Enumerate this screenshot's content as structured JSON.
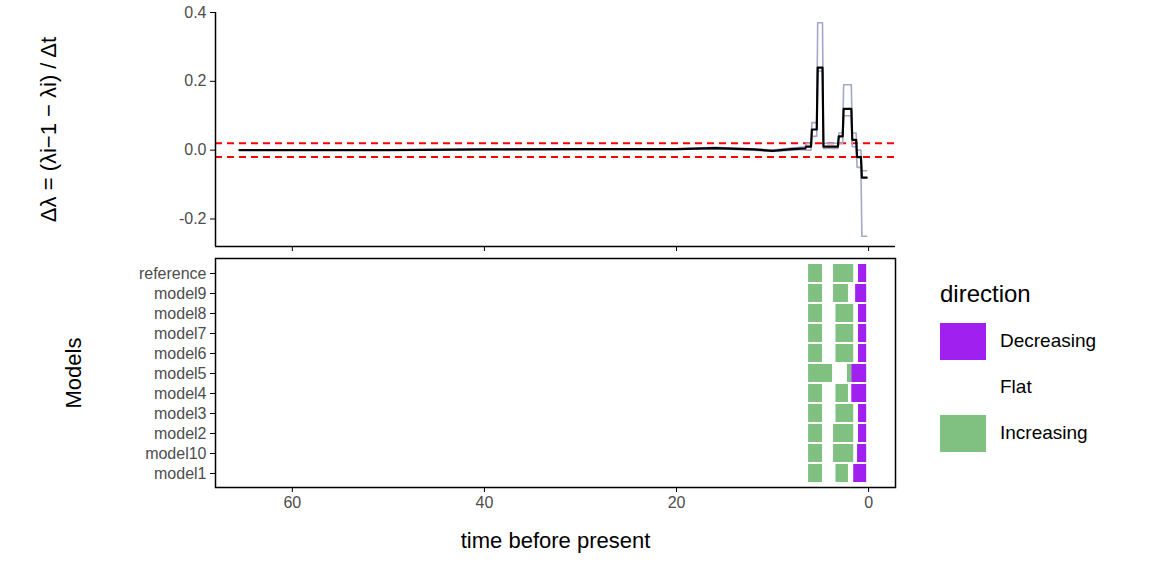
{
  "chart_data": [
    {
      "type": "line",
      "ylabel": "Δλ = (λi−1 − λi) / Δt",
      "x": [
        65.5,
        50,
        40,
        30,
        20,
        16,
        12,
        10,
        8,
        6.6,
        6.5,
        6.0,
        5.9,
        5.4,
        5.3,
        4.8,
        4.7,
        3.2,
        3.1,
        2.7,
        2.6,
        1.8,
        1.7,
        1.3,
        1.2,
        0.8,
        0.7,
        0.2
      ],
      "series": [
        {
          "color": "#a3a8c8",
          "values": [
            0,
            0,
            0.003,
            0.004,
            0.004,
            0.008,
            0.004,
            0.0,
            0.006,
            0.01,
            0.02,
            0.02,
            0.08,
            0.08,
            0.37,
            0.37,
            0.02,
            0.02,
            0.05,
            0.05,
            0.19,
            0.19,
            0.05,
            0.05,
            0.0,
            0.0,
            -0.06,
            -0.06
          ]
        },
        {
          "color": "#a3a8c8",
          "values": [
            0,
            0,
            0.001,
            0.002,
            0.002,
            0.004,
            0.0,
            -0.004,
            0.0,
            0.002,
            0.0,
            0.0,
            0.04,
            0.04,
            0.23,
            0.23,
            0.005,
            0.005,
            0.02,
            0.02,
            0.1,
            0.1,
            0.01,
            0.01,
            -0.05,
            -0.05,
            -0.25,
            -0.25
          ]
        },
        {
          "color": "#000000",
          "values": [
            0,
            0,
            0.002,
            0.003,
            0.003,
            0.006,
            0.002,
            -0.002,
            0.003,
            0.005,
            0.01,
            0.01,
            0.06,
            0.06,
            0.24,
            0.24,
            0.01,
            0.01,
            0.04,
            0.04,
            0.12,
            0.12,
            0.03,
            0.03,
            -0.02,
            -0.02,
            -0.08,
            -0.08
          ]
        }
      ],
      "reference_lines": [
        {
          "value": 0.02,
          "color": "#ff0000",
          "line_style": "dashed"
        },
        {
          "value": -0.02,
          "color": "#ff0000",
          "line_style": "dashed"
        }
      ],
      "xlim": [
        68,
        -2.8
      ],
      "xticks": [
        60,
        40,
        20,
        0
      ],
      "ylim": [
        -0.28,
        0.4
      ],
      "yticks": [
        -0.2,
        {
          "value": 0,
          "label": "0.0"
        },
        0.2,
        0.4
      ],
      "tick_labels": "y"
    },
    {
      "type": "tile",
      "xlabel": "time before present",
      "ylabel": "Models",
      "categories": [
        "reference",
        "model9",
        "model8",
        "model7",
        "model6",
        "model5",
        "model4",
        "model3",
        "model2",
        "model10",
        "model1"
      ],
      "rows": [
        {
          "name": "reference",
          "segments": [
            {
              "start": 6.25,
              "end": 4.8,
              "direction": "Increasing"
            },
            {
              "start": 3.65,
              "end": 1.55,
              "direction": "Increasing"
            },
            {
              "start": 1.05,
              "end": 0.2,
              "direction": "Decreasing"
            }
          ]
        },
        {
          "name": "model9",
          "segments": [
            {
              "start": 6.25,
              "end": 4.8,
              "direction": "Increasing"
            },
            {
              "start": 3.65,
              "end": 2.1,
              "direction": "Increasing"
            },
            {
              "start": 1.35,
              "end": 0.2,
              "direction": "Decreasing"
            }
          ]
        },
        {
          "name": "model8",
          "segments": [
            {
              "start": 6.25,
              "end": 4.8,
              "direction": "Increasing"
            },
            {
              "start": 3.4,
              "end": 1.55,
              "direction": "Increasing"
            },
            {
              "start": 1.05,
              "end": 0.2,
              "direction": "Decreasing"
            }
          ]
        },
        {
          "name": "model7",
          "segments": [
            {
              "start": 6.25,
              "end": 4.8,
              "direction": "Increasing"
            },
            {
              "start": 3.4,
              "end": 1.55,
              "direction": "Increasing"
            },
            {
              "start": 1.05,
              "end": 0.2,
              "direction": "Decreasing"
            }
          ]
        },
        {
          "name": "model6",
          "segments": [
            {
              "start": 6.25,
              "end": 4.8,
              "direction": "Increasing"
            },
            {
              "start": 3.4,
              "end": 1.55,
              "direction": "Increasing"
            },
            {
              "start": 1.05,
              "end": 0.2,
              "direction": "Decreasing"
            }
          ]
        },
        {
          "name": "model5",
          "segments": [
            {
              "start": 6.25,
              "end": 3.75,
              "direction": "Increasing"
            },
            {
              "start": 2.2,
              "end": 1.75,
              "direction": "Increasing"
            },
            {
              "start": 1.75,
              "end": 0.2,
              "direction": "Decreasing"
            }
          ]
        },
        {
          "name": "model4",
          "segments": [
            {
              "start": 6.25,
              "end": 4.8,
              "direction": "Increasing"
            },
            {
              "start": 3.4,
              "end": 2.1,
              "direction": "Increasing"
            },
            {
              "start": 1.75,
              "end": 0.2,
              "direction": "Decreasing"
            }
          ]
        },
        {
          "name": "model3",
          "segments": [
            {
              "start": 6.25,
              "end": 4.8,
              "direction": "Increasing"
            },
            {
              "start": 3.4,
              "end": 1.55,
              "direction": "Increasing"
            },
            {
              "start": 1.05,
              "end": 0.2,
              "direction": "Decreasing"
            }
          ]
        },
        {
          "name": "model2",
          "segments": [
            {
              "start": 6.25,
              "end": 4.8,
              "direction": "Increasing"
            },
            {
              "start": 3.65,
              "end": 1.55,
              "direction": "Increasing"
            },
            {
              "start": 1.05,
              "end": 0.2,
              "direction": "Decreasing"
            }
          ]
        },
        {
          "name": "model10",
          "segments": [
            {
              "start": 6.25,
              "end": 4.8,
              "direction": "Increasing"
            },
            {
              "start": 3.65,
              "end": 1.55,
              "direction": "Increasing"
            },
            {
              "start": 1.15,
              "end": 0.2,
              "direction": "Decreasing"
            }
          ]
        },
        {
          "name": "model1",
          "segments": [
            {
              "start": 6.25,
              "end": 4.8,
              "direction": "Increasing"
            },
            {
              "start": 3.4,
              "end": 2.1,
              "direction": "Increasing"
            },
            {
              "start": 1.55,
              "end": 0.2,
              "direction": "Decreasing"
            }
          ]
        }
      ],
      "legend_title": "direction",
      "legend": "right",
      "series": [
        {
          "name": "Decreasing",
          "color": "#a020f0"
        },
        {
          "name": "Flat",
          "color": "#ffffff"
        },
        {
          "name": "Increasing",
          "color": "#80c080"
        }
      ],
      "xlim": [
        68,
        -2.8
      ],
      "xticks": [
        60,
        40,
        20,
        0
      ]
    }
  ]
}
